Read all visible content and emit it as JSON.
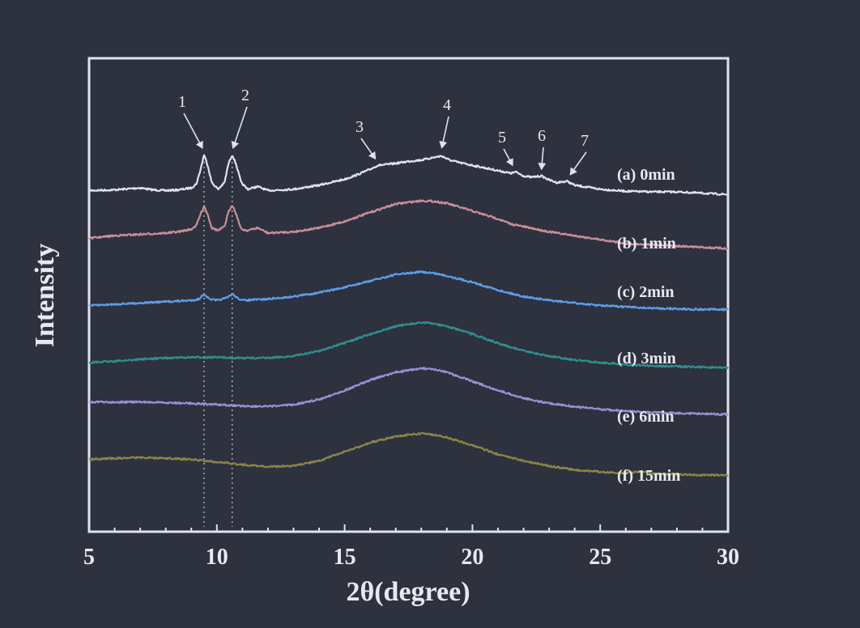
{
  "chart_data": {
    "type": "line",
    "xlabel": "2θ(degree)",
    "ylabel": "Intensity",
    "xlim": [
      5,
      30
    ],
    "xticks": [
      "5",
      "10",
      "15",
      "20",
      "25",
      "30"
    ],
    "grid": false,
    "reference_lines_x": [
      9.5,
      10.6
    ],
    "series": [
      {
        "name": "(a) 0min",
        "color": "#dfe2f0",
        "x": [
          5,
          6,
          7,
          7.5,
          8,
          8.5,
          9,
          9.2,
          9.35,
          9.5,
          9.65,
          9.8,
          10.05,
          10.3,
          10.45,
          10.6,
          10.75,
          10.95,
          11.2,
          11.6,
          12,
          13,
          14,
          15,
          15.5,
          16,
          16.3,
          16.6,
          17,
          17.5,
          18,
          18.5,
          18.8,
          19.1,
          19.5,
          20,
          20.5,
          21,
          21.5,
          21.7,
          22,
          22.3,
          22.7,
          23,
          23.3,
          23.7,
          24,
          25,
          26,
          27,
          28,
          29,
          30
        ],
        "y": [
          0.08,
          0.09,
          0.12,
          0.09,
          0.08,
          0.09,
          0.12,
          0.18,
          0.38,
          0.62,
          0.45,
          0.2,
          0.1,
          0.2,
          0.48,
          0.62,
          0.48,
          0.2,
          0.1,
          0.14,
          0.08,
          0.1,
          0.16,
          0.25,
          0.32,
          0.4,
          0.46,
          0.47,
          0.49,
          0.52,
          0.54,
          0.58,
          0.6,
          0.54,
          0.5,
          0.46,
          0.42,
          0.38,
          0.34,
          0.36,
          0.3,
          0.28,
          0.3,
          0.24,
          0.2,
          0.22,
          0.16,
          0.1,
          0.07,
          0.06,
          0.06,
          0.04,
          0.02
        ]
      },
      {
        "name": "(b) 1min",
        "color": "#c98f97",
        "x": [
          5,
          6,
          7,
          8,
          8.5,
          9,
          9.2,
          9.35,
          9.5,
          9.65,
          9.8,
          10.05,
          10.3,
          10.45,
          10.6,
          10.75,
          10.95,
          11.2,
          11.6,
          12,
          13,
          14,
          15,
          16,
          17,
          18,
          18.5,
          19,
          20,
          21,
          21.5,
          22,
          22.5,
          23,
          24,
          25,
          26,
          27,
          28,
          29,
          30
        ],
        "y": [
          0.22,
          0.26,
          0.28,
          0.3,
          0.32,
          0.36,
          0.42,
          0.58,
          0.72,
          0.58,
          0.38,
          0.34,
          0.4,
          0.62,
          0.74,
          0.6,
          0.36,
          0.34,
          0.38,
          0.3,
          0.32,
          0.38,
          0.48,
          0.62,
          0.75,
          0.8,
          0.79,
          0.76,
          0.64,
          0.52,
          0.44,
          0.4,
          0.36,
          0.32,
          0.26,
          0.2,
          0.14,
          0.12,
          0.1,
          0.08,
          0.06
        ]
      },
      {
        "name": "(c) 2min",
        "color": "#5b9ee8",
        "x": [
          5,
          6,
          7,
          8,
          9,
          9.3,
          9.5,
          9.7,
          10,
          10.4,
          10.6,
          10.8,
          11,
          12,
          13,
          14,
          15,
          16,
          17,
          18,
          18.5,
          19,
          20,
          21,
          22,
          23,
          24,
          25,
          26,
          27,
          28,
          29,
          30
        ],
        "y": [
          0.08,
          0.1,
          0.12,
          0.14,
          0.16,
          0.18,
          0.26,
          0.18,
          0.16,
          0.2,
          0.26,
          0.2,
          0.16,
          0.18,
          0.22,
          0.28,
          0.36,
          0.46,
          0.56,
          0.6,
          0.58,
          0.54,
          0.44,
          0.32,
          0.22,
          0.16,
          0.12,
          0.08,
          0.06,
          0.04,
          0.03,
          0.02,
          0.02
        ]
      },
      {
        "name": "(d) 3min",
        "color": "#2f8f8c",
        "x": [
          5,
          6,
          7,
          8,
          9,
          10,
          11,
          12,
          13,
          14,
          15,
          16,
          17,
          18,
          18.5,
          19,
          20,
          21,
          22,
          23,
          24,
          25,
          26,
          27,
          28,
          29,
          30
        ],
        "y": [
          0.1,
          0.12,
          0.15,
          0.17,
          0.18,
          0.18,
          0.17,
          0.17,
          0.2,
          0.28,
          0.4,
          0.54,
          0.66,
          0.72,
          0.7,
          0.66,
          0.54,
          0.4,
          0.28,
          0.2,
          0.14,
          0.1,
          0.07,
          0.05,
          0.04,
          0.03,
          0.02
        ]
      },
      {
        "name": "(e) 6min",
        "color": "#9a8fd4",
        "x": [
          5,
          6,
          7,
          8,
          9,
          10,
          11,
          12,
          13,
          14,
          15,
          16,
          17,
          18,
          18.5,
          19,
          20,
          21,
          22,
          23,
          24,
          25,
          26,
          27,
          28,
          29,
          30
        ],
        "y": [
          0.24,
          0.24,
          0.24,
          0.23,
          0.22,
          0.2,
          0.18,
          0.17,
          0.2,
          0.28,
          0.42,
          0.58,
          0.7,
          0.76,
          0.74,
          0.7,
          0.56,
          0.42,
          0.3,
          0.22,
          0.17,
          0.13,
          0.1,
          0.08,
          0.07,
          0.06,
          0.05
        ]
      },
      {
        "name": "(f) 15min",
        "color": "#8c8545",
        "x": [
          5,
          6,
          7,
          8,
          9,
          10,
          11,
          12,
          13,
          14,
          15,
          16,
          17,
          18,
          18.5,
          19,
          20,
          21,
          22,
          23,
          24,
          25,
          26,
          26.7,
          27,
          28,
          29,
          30
        ],
        "y": [
          0.24,
          0.26,
          0.27,
          0.26,
          0.24,
          0.2,
          0.16,
          0.13,
          0.14,
          0.22,
          0.36,
          0.5,
          0.6,
          0.64,
          0.62,
          0.58,
          0.46,
          0.32,
          0.22,
          0.14,
          0.08,
          0.05,
          0.03,
          0.06,
          0.02,
          0.01,
          0.0,
          0.0
        ]
      }
    ],
    "peak_labels": [
      {
        "label": "1",
        "x": 9.5,
        "series": 0
      },
      {
        "label": "2",
        "x": 10.6,
        "series": 0
      },
      {
        "label": "3",
        "x": 16.3,
        "series": 0
      },
      {
        "label": "4",
        "x": 18.8,
        "series": 0
      },
      {
        "label": "5",
        "x": 21.7,
        "series": 0
      },
      {
        "label": "6",
        "x": 22.7,
        "series": 0
      },
      {
        "label": "7",
        "x": 23.7,
        "series": 0
      }
    ],
    "axis_color": "#dfe2f0"
  }
}
